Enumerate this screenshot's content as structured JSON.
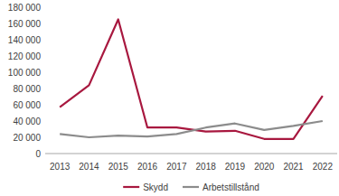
{
  "chart_data": {
    "type": "line",
    "categories": [
      "2013",
      "2014",
      "2015",
      "2016",
      "2017",
      "2018",
      "2019",
      "2020",
      "2021",
      "2022"
    ],
    "series": [
      {
        "name": "Skydd",
        "color": "#a8183f",
        "values": [
          57000,
          84000,
          165000,
          32000,
          32000,
          27000,
          28000,
          18000,
          18000,
          71000
        ]
      },
      {
        "name": "Arbetstillstånd",
        "color": "#8c8c8c",
        "values": [
          24000,
          20000,
          22000,
          21000,
          24000,
          32000,
          37000,
          29000,
          34000,
          40000
        ]
      }
    ],
    "ylim": [
      0,
      180000
    ],
    "yticks": [
      0,
      {
        "value": 20000,
        "label": "20 000"
      },
      {
        "value": 40000,
        "label": "40 000"
      },
      {
        "value": 60000,
        "label": "60 000"
      },
      {
        "value": 80000,
        "label": "80 000"
      },
      {
        "value": 100000,
        "label": "100 000"
      },
      {
        "value": 120000,
        "label": "120 000"
      },
      {
        "value": 140000,
        "label": "140 000"
      },
      {
        "value": 160000,
        "label": "160 000"
      },
      {
        "value": 180000,
        "label": "180 000"
      }
    ],
    "grid": false,
    "legend": "bottom"
  }
}
